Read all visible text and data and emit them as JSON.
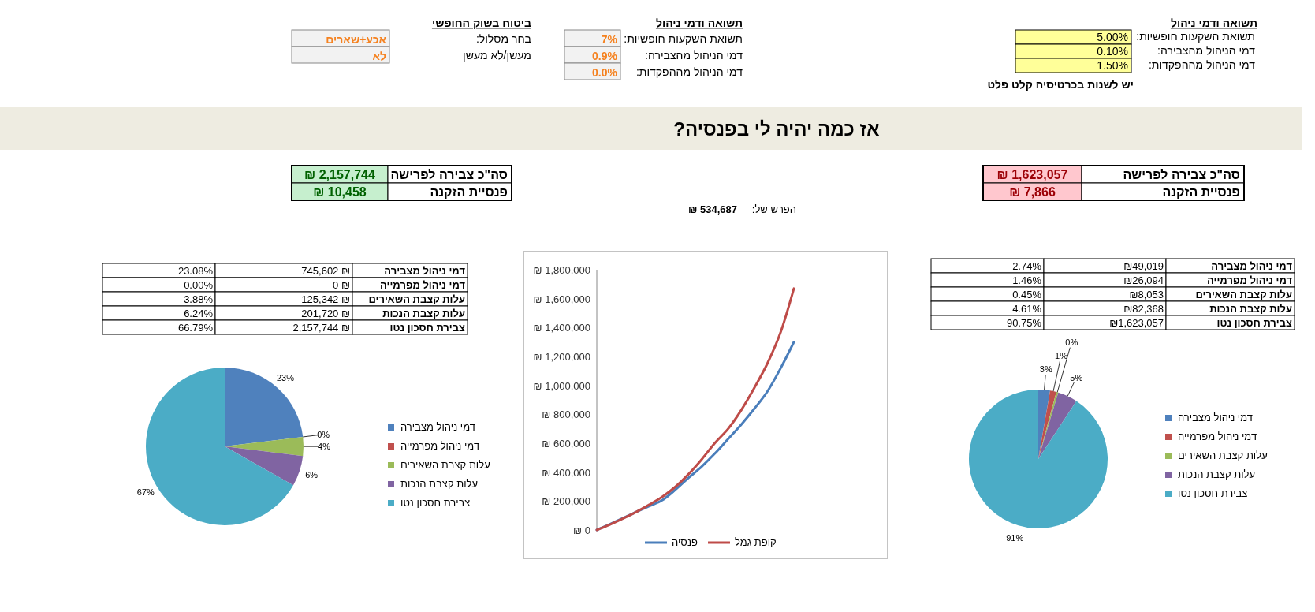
{
  "chart_data": [
    {
      "type": "other",
      "title": "תשואה ודמי ניהול",
      "annotations": [
        "תשואת השקעות חופשיות:",
        "5.00%",
        "דמי הניהול מהצבירה:",
        "0.10%",
        "דמי הניהול מההפקדות:",
        "1.50%",
        "יש לשנות בכרטיסיה קלט פלט"
      ]
    },
    {
      "type": "other",
      "title": "תשואה ודמי ניהול",
      "annotations": [
        "תשואת השקעות חופשיות:",
        "7%",
        "דמי הניהול מהצבירה:",
        "0.9%",
        "דמי הניהול מההפקדות:",
        "0.0%"
      ]
    },
    {
      "type": "other",
      "title": "ביטוח בשוק החופשי",
      "annotations": [
        "בחר מסלול:",
        "אכע+שארים",
        "מעשן/לא מעשן",
        "לא"
      ]
    },
    {
      "type": "other",
      "title": "אז כמה יהיה לי בפנסיה?",
      "annotations": [
        "סה\"כ צבירה לפרישה",
        "₪ 1,623,057",
        "פנסיית הזקנה",
        "₪ 7,866",
        "סה\"כ צבירה לפרישה",
        "₪ 2,157,744",
        "פנסיית הזקנה",
        "₪ 10,458",
        "הפרש של:",
        "₪ 534,687"
      ]
    },
    {
      "type": "pie",
      "categories": [
        "דמי ניהול מצבירה",
        "דמי ניהול מפרמייה",
        "עלות קצבת השאירים",
        "עלות קצבת הנכות",
        "צבירת חסכון נטו"
      ],
      "values": [
        23.08,
        0,
        3.88,
        6.24,
        66.79
      ],
      "colors": [
        "#4f81bd",
        "#c0504d",
        "#9bbb59",
        "#8064a2",
        "#4bacc6"
      ],
      "value_labels": [
        "23%",
        "0%",
        "4%",
        "6%",
        "67%"
      ],
      "legend": "right",
      "annotations": [
        "745,602 ₪",
        "23.08%",
        "0 ₪",
        "0.00%",
        "125,342 ₪",
        "3.88%",
        "201,720 ₪",
        "6.24%",
        "2,157,744 ₪",
        "66.79%"
      ]
    },
    {
      "type": "line",
      "categories": [
        null,
        null,
        null,
        null,
        null,
        null,
        null,
        null,
        null,
        null,
        null,
        null,
        null,
        null,
        null,
        null
      ],
      "series": [
        {
          "name": "פנסיה",
          "color": "#4a7ebb",
          "values": [
            0,
            40000,
            82000,
            125000,
            165000,
            207000,
            280000,
            362000,
            440000,
            530000,
            630000,
            730000,
            840000,
            960000,
            1120000,
            1300000
          ]
        },
        {
          "name": "קופת גמל",
          "color": "#be4b48",
          "values": [
            0,
            38000,
            80000,
            125000,
            175000,
            230000,
            300000,
            388000,
            490000,
            603000,
            700000,
            830000,
            985000,
            1155000,
            1370000,
            1670000
          ]
        }
      ],
      "ylim": [
        0,
        1800000
      ],
      "yticks": [
        {
          "value": 0,
          "label": "₪ 0"
        },
        {
          "value": 200000,
          "label": "₪ 200,000"
        },
        {
          "value": 400000,
          "label": "₪ 400,000"
        },
        {
          "value": 600000,
          "label": "₪ 600,000"
        },
        {
          "value": 800000,
          "label": "₪ 800,000"
        },
        {
          "value": 1000000,
          "label": "₪ 1,000,000"
        },
        {
          "value": 1200000,
          "label": "₪ 1,200,000"
        },
        {
          "value": 1400000,
          "label": "₪ 1,400,000"
        },
        {
          "value": 1600000,
          "label": "₪ 1,600,000"
        },
        {
          "value": 1800000,
          "label": "₪ 1,800,000"
        }
      ],
      "legend": "bottom",
      "tick_labels": "y"
    },
    {
      "type": "pie",
      "categories": [
        "דמי ניהול מצבירה",
        "דמי ניהול מפרמייה",
        "עלות קצבת השאירים",
        "עלות קצבת הנכות",
        "צבירת חסכון  נטו"
      ],
      "values": [
        2.74,
        1.46,
        0.45,
        4.61,
        90.75
      ],
      "colors": [
        "#4f81bd",
        "#c0504d",
        "#9bbb59",
        "#8064a2",
        "#4bacc6"
      ],
      "value_labels": [
        "3%",
        "1%",
        "0%",
        "5%",
        "91%"
      ],
      "legend": "right",
      "annotations": [
        "₪49,019",
        "2.74%",
        "₪26,094",
        "1.46%",
        "₪8,053",
        "0.45%",
        "₪82,368",
        "4.61%",
        "₪1,623,057",
        "90.75%"
      ]
    }
  ]
}
